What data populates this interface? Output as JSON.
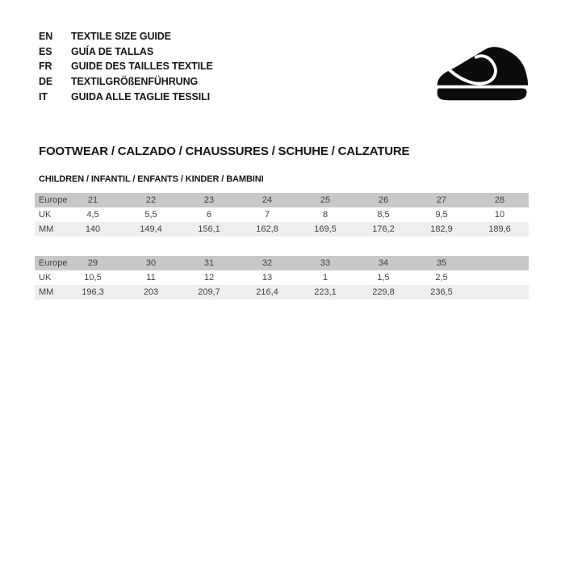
{
  "colors": {
    "background": "#ffffff",
    "heading_text": "#161616",
    "table_text": "#404040",
    "header_row_bg": "#c8c8c8",
    "alt_row_bg": "#eeeeee",
    "icon_black": "#0c0c0c"
  },
  "language_guide": {
    "items": [
      {
        "code": "EN",
        "label": "TEXTILE SIZE GUIDE"
      },
      {
        "code": "ES",
        "label": "GUÍA DE TALLAS"
      },
      {
        "code": "FR",
        "label": "GUIDE DES TAILLES TEXTILE"
      },
      {
        "code": "DE",
        "label": "TEXTILGRÖßENFÜHRUNG"
      },
      {
        "code": "IT",
        "label": "GUIDA ALLE TAGLIE TESSILI"
      }
    ]
  },
  "icons": {
    "shoe": "children-shoe-icon"
  },
  "section": {
    "title": "FOOTWEAR / CALZADO / CHAUSSURES / SCHUHE / CALZATURE",
    "subtitle": "CHILDREN / INFANTIL / ENFANTS / KINDER / BAMBINI"
  },
  "size_tables": [
    {
      "rows": [
        {
          "label": "Europe",
          "values": [
            "21",
            "22",
            "23",
            "24",
            "25",
            "26",
            "27",
            "28"
          ]
        },
        {
          "label": "UK",
          "values": [
            "4,5",
            "5,5",
            "6",
            "7",
            "8",
            "8,5",
            "9,5",
            "10"
          ]
        },
        {
          "label": "MM",
          "values": [
            "140",
            "149,4",
            "156,1",
            "162,8",
            "169,5",
            "176,2",
            "182,9",
            "189,6"
          ]
        }
      ]
    },
    {
      "rows": [
        {
          "label": "Europe",
          "values": [
            "29",
            "30",
            "31",
            "32",
            "33",
            "34",
            "35",
            ""
          ]
        },
        {
          "label": "UK",
          "values": [
            "10,5",
            "11",
            "12",
            "13",
            "1",
            "1,5",
            "2,5",
            ""
          ]
        },
        {
          "label": "MM",
          "values": [
            "196,3",
            "203",
            "209,7",
            "216,4",
            "223,1",
            "229,8",
            "236,5",
            ""
          ]
        }
      ]
    }
  ]
}
